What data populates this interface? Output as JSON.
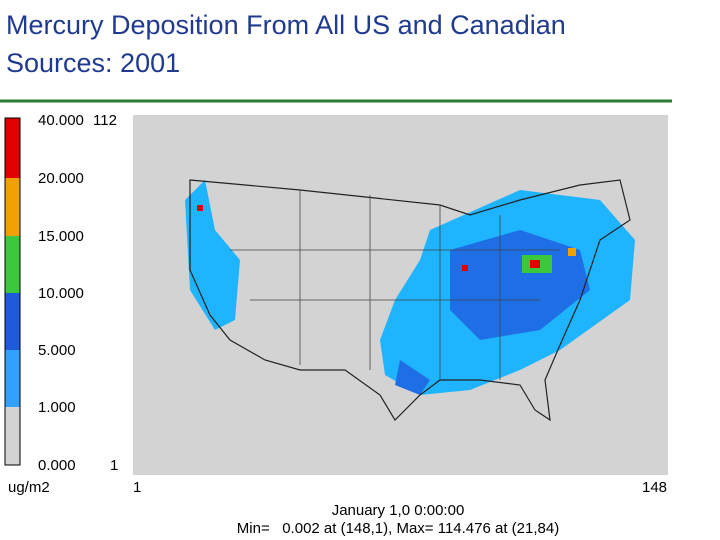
{
  "header": {
    "title_line1": "Mercury Deposition From All US and Canadian",
    "title_line2": "Sources: 2001"
  },
  "legend": {
    "labels": [
      "40.000",
      "20.000",
      "15.000",
      "10.000",
      "5.000",
      "1.000",
      "0.000"
    ],
    "unit": "ug/m2"
  },
  "map": {
    "y_top": "112",
    "y_bottom": "1",
    "x_left": "1",
    "x_right": "148"
  },
  "footer": {
    "time": "January 1,0 0:00:00",
    "stats": "Min=   0.002 at (148,1), Max= 114.476 at (21,84)"
  }
}
